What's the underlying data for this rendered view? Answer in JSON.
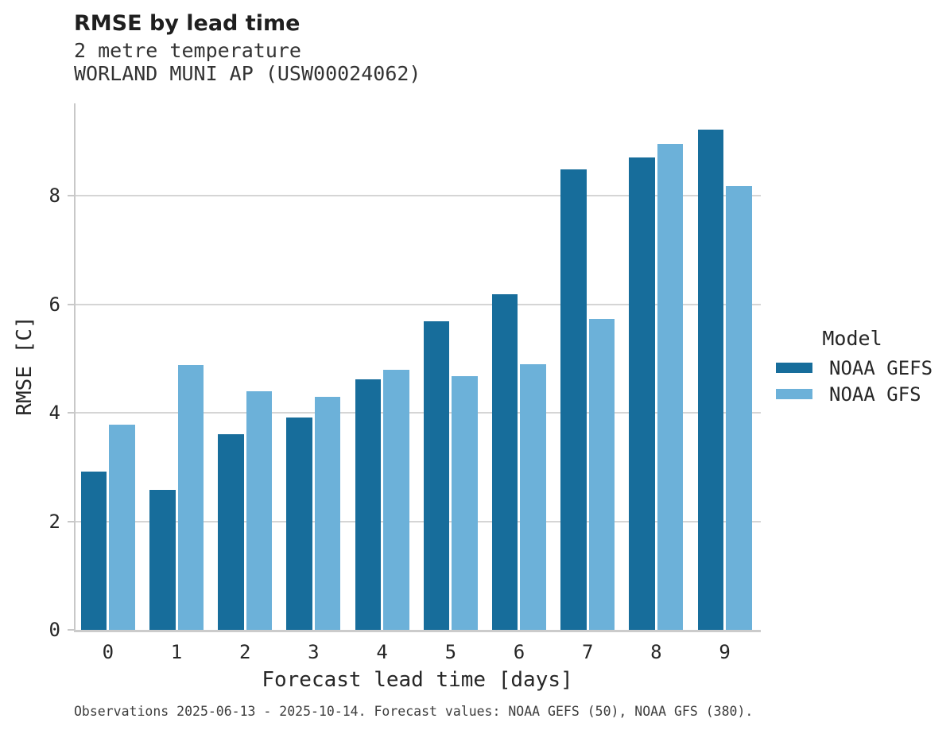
{
  "header": {
    "title": "RMSE by lead time",
    "subtitle_line1": "2 metre temperature",
    "subtitle_line2": "WORLAND MUNI AP (USW00024062)"
  },
  "legend": {
    "title": "Model",
    "items": [
      {
        "label": "NOAA GEFS",
        "color": "#176d9b"
      },
      {
        "label": "NOAA GFS",
        "color": "#6cb1d9"
      }
    ]
  },
  "footer": {
    "note": "Observations 2025-06-13 - 2025-10-14. Forecast values: NOAA GEFS (50), NOAA GFS (380)."
  },
  "colors": {
    "gefs": "#176d9b",
    "gfs": "#6cb1d9",
    "gridline": "#d5d5d5",
    "spine": "#c8c8c8",
    "text": "#262626"
  },
  "chart_data": {
    "type": "bar",
    "title": "RMSE by lead time",
    "subtitle": "2 metre temperature — WORLAND MUNI AP (USW00024062)",
    "categories": [
      "0",
      "1",
      "2",
      "3",
      "4",
      "5",
      "6",
      "7",
      "8",
      "9"
    ],
    "series": [
      {
        "name": "NOAA GEFS",
        "color": "#176d9b",
        "values": [
          2.91,
          2.58,
          3.61,
          3.91,
          4.62,
          5.69,
          6.18,
          8.48,
          8.71,
          9.22
        ]
      },
      {
        "name": "NOAA GFS",
        "color": "#6cb1d9",
        "values": [
          3.78,
          4.88,
          4.4,
          4.3,
          4.79,
          4.67,
          4.89,
          5.73,
          8.96,
          8.17
        ]
      }
    ],
    "xlabel": "Forecast lead time [days]",
    "ylabel": "RMSE [C]",
    "yticks": [
      0,
      2,
      4,
      6,
      8
    ],
    "ylim": [
      0,
      9.7
    ],
    "grid": true,
    "legend_title": "Model",
    "legend_position": "right"
  }
}
